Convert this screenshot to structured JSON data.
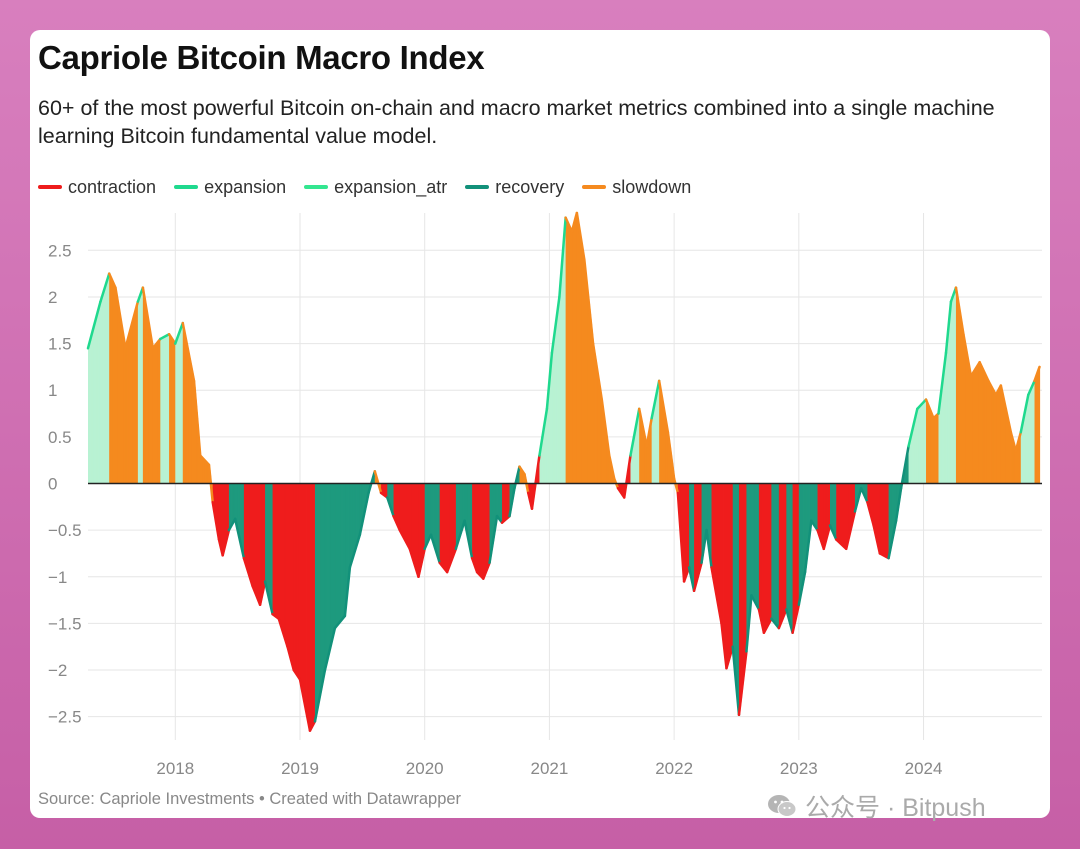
{
  "header": {
    "title": "Capriole Bitcoin Macro Index",
    "subtitle": "60+ of the most powerful Bitcoin on-chain and macro market metrics combined into a single machine learning Bitcoin fundamental value model."
  },
  "footer": {
    "source": "Source: Capriole Investments • Created with Datawrapper",
    "watermark": "公众号 · Bitpush"
  },
  "chart_data": {
    "type": "area",
    "title": "Capriole Bitcoin Macro Index",
    "xlabel": "",
    "ylabel": "",
    "xlim": [
      2017.3,
      2024.95
    ],
    "ylim": [
      -2.75,
      2.9
    ],
    "x_ticks": [
      2018,
      2019,
      2020,
      2021,
      2022,
      2023,
      2024
    ],
    "x_tick_labels": [
      "2018",
      "2019",
      "2020",
      "2021",
      "2022",
      "2023",
      "2024"
    ],
    "y_ticks": [
      2.5,
      2,
      1.5,
      1,
      0.5,
      0,
      -0.5,
      -1,
      -1.5,
      -2,
      -2.5
    ],
    "y_tick_labels": [
      "2.5",
      "2",
      "1.5",
      "1",
      "0.5",
      "0",
      "−0.5",
      "−1",
      "−1.5",
      "−2",
      "−2.5"
    ],
    "grid": true,
    "legend_position": "top-left",
    "legend": [
      {
        "name": "contraction",
        "color": "#ee1c1c"
      },
      {
        "name": "expansion",
        "color": "#1fd98e"
      },
      {
        "name": "expansion_atr",
        "color": "#33e690"
      },
      {
        "name": "recovery",
        "color": "#12917a"
      },
      {
        "name": "slowdown",
        "color": "#f58a1f"
      }
    ],
    "fill_colors": {
      "contraction": "#ef1d1d",
      "expansion": "#b8f2d3",
      "expansion_atr": "#b8f2d3",
      "recovery": "#1e9a7e",
      "slowdown": "#f58a1f"
    },
    "points": [
      [
        2017.3,
        1.45,
        "expansion"
      ],
      [
        2017.4,
        1.95,
        "expansion"
      ],
      [
        2017.47,
        2.25,
        "slowdown"
      ],
      [
        2017.52,
        2.1,
        "slowdown"
      ],
      [
        2017.6,
        1.45,
        "slowdown"
      ],
      [
        2017.7,
        1.95,
        "expansion"
      ],
      [
        2017.74,
        2.1,
        "slowdown"
      ],
      [
        2017.82,
        1.45,
        "slowdown"
      ],
      [
        2017.88,
        1.55,
        "expansion"
      ],
      [
        2017.95,
        1.6,
        "slowdown"
      ],
      [
        2018.0,
        1.5,
        "expansion"
      ],
      [
        2018.06,
        1.72,
        "slowdown"
      ],
      [
        2018.15,
        1.1,
        "slowdown"
      ],
      [
        2018.2,
        0.3,
        "slowdown"
      ],
      [
        2018.27,
        0.2,
        "slowdown"
      ],
      [
        2018.3,
        -0.2,
        "contraction"
      ],
      [
        2018.35,
        -0.6,
        "contraction"
      ],
      [
        2018.38,
        -0.77,
        "contraction"
      ],
      [
        2018.43,
        -0.5,
        "recovery"
      ],
      [
        2018.48,
        -0.38,
        "recovery"
      ],
      [
        2018.55,
        -0.8,
        "contraction"
      ],
      [
        2018.62,
        -1.1,
        "contraction"
      ],
      [
        2018.68,
        -1.3,
        "contraction"
      ],
      [
        2018.72,
        -1.05,
        "recovery"
      ],
      [
        2018.78,
        -1.4,
        "contraction"
      ],
      [
        2018.83,
        -1.45,
        "contraction"
      ],
      [
        2018.9,
        -1.75,
        "contraction"
      ],
      [
        2018.95,
        -2.0,
        "contraction"
      ],
      [
        2019.0,
        -2.1,
        "contraction"
      ],
      [
        2019.08,
        -2.65,
        "contraction"
      ],
      [
        2019.12,
        -2.55,
        "recovery"
      ],
      [
        2019.2,
        -2.0,
        "recovery"
      ],
      [
        2019.28,
        -1.55,
        "recovery"
      ],
      [
        2019.36,
        -1.42,
        "recovery"
      ],
      [
        2019.4,
        -0.9,
        "recovery"
      ],
      [
        2019.48,
        -0.55,
        "recovery"
      ],
      [
        2019.55,
        -0.1,
        "recovery"
      ],
      [
        2019.6,
        0.13,
        "slowdown"
      ],
      [
        2019.65,
        -0.1,
        "contraction"
      ],
      [
        2019.7,
        -0.15,
        "recovery"
      ],
      [
        2019.75,
        -0.35,
        "contraction"
      ],
      [
        2019.8,
        -0.5,
        "contraction"
      ],
      [
        2019.88,
        -0.7,
        "contraction"
      ],
      [
        2019.95,
        -1.0,
        "contraction"
      ],
      [
        2020.0,
        -0.7,
        "recovery"
      ],
      [
        2020.05,
        -0.55,
        "recovery"
      ],
      [
        2020.12,
        -0.85,
        "contraction"
      ],
      [
        2020.18,
        -0.95,
        "contraction"
      ],
      [
        2020.25,
        -0.7,
        "recovery"
      ],
      [
        2020.32,
        -0.4,
        "recovery"
      ],
      [
        2020.38,
        -0.8,
        "contraction"
      ],
      [
        2020.42,
        -0.95,
        "contraction"
      ],
      [
        2020.47,
        -1.02,
        "contraction"
      ],
      [
        2020.52,
        -0.85,
        "recovery"
      ],
      [
        2020.58,
        -0.35,
        "recovery"
      ],
      [
        2020.62,
        -0.42,
        "contraction"
      ],
      [
        2020.68,
        -0.35,
        "recovery"
      ],
      [
        2020.72,
        -0.05,
        "recovery"
      ],
      [
        2020.76,
        0.18,
        "slowdown"
      ],
      [
        2020.8,
        0.1,
        "slowdown"
      ],
      [
        2020.83,
        -0.1,
        "contraction"
      ],
      [
        2020.86,
        -0.27,
        "contraction"
      ],
      [
        2020.92,
        0.3,
        "expansion"
      ],
      [
        2020.98,
        0.8,
        "expansion"
      ],
      [
        2021.02,
        1.4,
        "expansion"
      ],
      [
        2021.08,
        2.0,
        "expansion"
      ],
      [
        2021.13,
        2.85,
        "slowdown"
      ],
      [
        2021.18,
        2.7,
        "slowdown"
      ],
      [
        2021.22,
        2.9,
        "slowdown"
      ],
      [
        2021.28,
        2.4,
        "slowdown"
      ],
      [
        2021.35,
        1.5,
        "slowdown"
      ],
      [
        2021.42,
        0.9,
        "slowdown"
      ],
      [
        2021.48,
        0.3,
        "slowdown"
      ],
      [
        2021.52,
        0.05,
        "slowdown"
      ],
      [
        2021.55,
        -0.05,
        "contraction"
      ],
      [
        2021.6,
        -0.15,
        "contraction"
      ],
      [
        2021.65,
        0.3,
        "expansion"
      ],
      [
        2021.72,
        0.8,
        "slowdown"
      ],
      [
        2021.78,
        0.4,
        "slowdown"
      ],
      [
        2021.82,
        0.7,
        "expansion"
      ],
      [
        2021.88,
        1.1,
        "slowdown"
      ],
      [
        2021.95,
        0.55,
        "slowdown"
      ],
      [
        2022.0,
        0.05,
        "slowdown"
      ],
      [
        2022.03,
        -0.1,
        "contraction"
      ],
      [
        2022.08,
        -1.05,
        "contraction"
      ],
      [
        2022.12,
        -0.9,
        "recovery"
      ],
      [
        2022.16,
        -1.15,
        "contraction"
      ],
      [
        2022.22,
        -0.85,
        "recovery"
      ],
      [
        2022.26,
        -0.5,
        "recovery"
      ],
      [
        2022.3,
        -0.9,
        "contraction"
      ],
      [
        2022.38,
        -1.5,
        "contraction"
      ],
      [
        2022.42,
        -1.98,
        "contraction"
      ],
      [
        2022.47,
        -1.75,
        "recovery"
      ],
      [
        2022.52,
        -2.48,
        "contraction"
      ],
      [
        2022.58,
        -1.8,
        "recovery"
      ],
      [
        2022.62,
        -1.2,
        "recovery"
      ],
      [
        2022.68,
        -1.35,
        "contraction"
      ],
      [
        2022.72,
        -1.6,
        "contraction"
      ],
      [
        2022.78,
        -1.45,
        "recovery"
      ],
      [
        2022.84,
        -1.55,
        "contraction"
      ],
      [
        2022.9,
        -1.35,
        "recovery"
      ],
      [
        2022.95,
        -1.6,
        "contraction"
      ],
      [
        2023.0,
        -1.3,
        "recovery"
      ],
      [
        2023.05,
        -0.95,
        "recovery"
      ],
      [
        2023.1,
        -0.4,
        "recovery"
      ],
      [
        2023.15,
        -0.5,
        "contraction"
      ],
      [
        2023.2,
        -0.7,
        "contraction"
      ],
      [
        2023.25,
        -0.45,
        "recovery"
      ],
      [
        2023.3,
        -0.6,
        "contraction"
      ],
      [
        2023.38,
        -0.7,
        "contraction"
      ],
      [
        2023.45,
        -0.3,
        "recovery"
      ],
      [
        2023.5,
        -0.05,
        "recovery"
      ],
      [
        2023.55,
        -0.2,
        "contraction"
      ],
      [
        2023.6,
        -0.45,
        "contraction"
      ],
      [
        2023.65,
        -0.75,
        "contraction"
      ],
      [
        2023.72,
        -0.8,
        "recovery"
      ],
      [
        2023.78,
        -0.4,
        "recovery"
      ],
      [
        2023.82,
        -0.05,
        "recovery"
      ],
      [
        2023.88,
        0.4,
        "expansion"
      ],
      [
        2023.95,
        0.8,
        "expansion"
      ],
      [
        2024.02,
        0.9,
        "slowdown"
      ],
      [
        2024.08,
        0.7,
        "slowdown"
      ],
      [
        2024.12,
        0.75,
        "expansion"
      ],
      [
        2024.18,
        1.4,
        "expansion"
      ],
      [
        2024.22,
        1.95,
        "expansion"
      ],
      [
        2024.26,
        2.1,
        "slowdown"
      ],
      [
        2024.32,
        1.6,
        "slowdown"
      ],
      [
        2024.38,
        1.15,
        "slowdown"
      ],
      [
        2024.45,
        1.3,
        "slowdown"
      ],
      [
        2024.52,
        1.1,
        "slowdown"
      ],
      [
        2024.58,
        0.95,
        "slowdown"
      ],
      [
        2024.62,
        1.05,
        "slowdown"
      ],
      [
        2024.66,
        0.8,
        "slowdown"
      ],
      [
        2024.7,
        0.55,
        "slowdown"
      ],
      [
        2024.74,
        0.35,
        "slowdown"
      ],
      [
        2024.78,
        0.55,
        "expansion"
      ],
      [
        2024.84,
        0.95,
        "expansion"
      ],
      [
        2024.89,
        1.1,
        "slowdown"
      ],
      [
        2024.93,
        1.25,
        "expansion"
      ]
    ]
  }
}
